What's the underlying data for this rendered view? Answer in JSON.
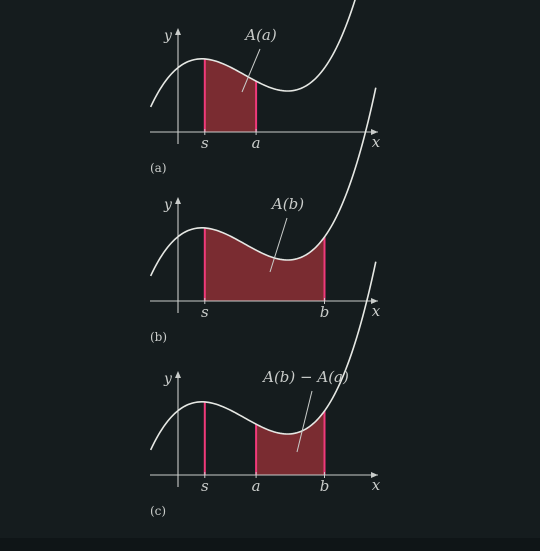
{
  "colors": {
    "background": "#151c1e",
    "curve": "#e6e8e4",
    "axis": "#c9ccca",
    "fill": "#7a2c31",
    "boundary": "#f0397a"
  },
  "panels": [
    {
      "caption": "(a)",
      "area_label": "A(a)",
      "axis_x_label": "x",
      "axis_y_label": "y",
      "left_bound_label": "s",
      "right_bound_label": "a",
      "left_bound": 0.4,
      "right_bound": 1.3
    },
    {
      "caption": "(b)",
      "area_label": "A(b)",
      "axis_x_label": "x",
      "axis_y_label": "y",
      "left_bound_label": "s",
      "right_bound_label": "b",
      "left_bound": 0.4,
      "right_bound": 2.5
    },
    {
      "caption": "(c)",
      "area_label": "A(b) − A(a)",
      "axis_x_label": "x",
      "axis_y_label": "y",
      "left_bound_label": "s",
      "middle_bound_label": "a",
      "right_bound_label": "b",
      "left_bound": 0.4,
      "middle_bound": 1.3,
      "right_bound": 2.5
    }
  ]
}
